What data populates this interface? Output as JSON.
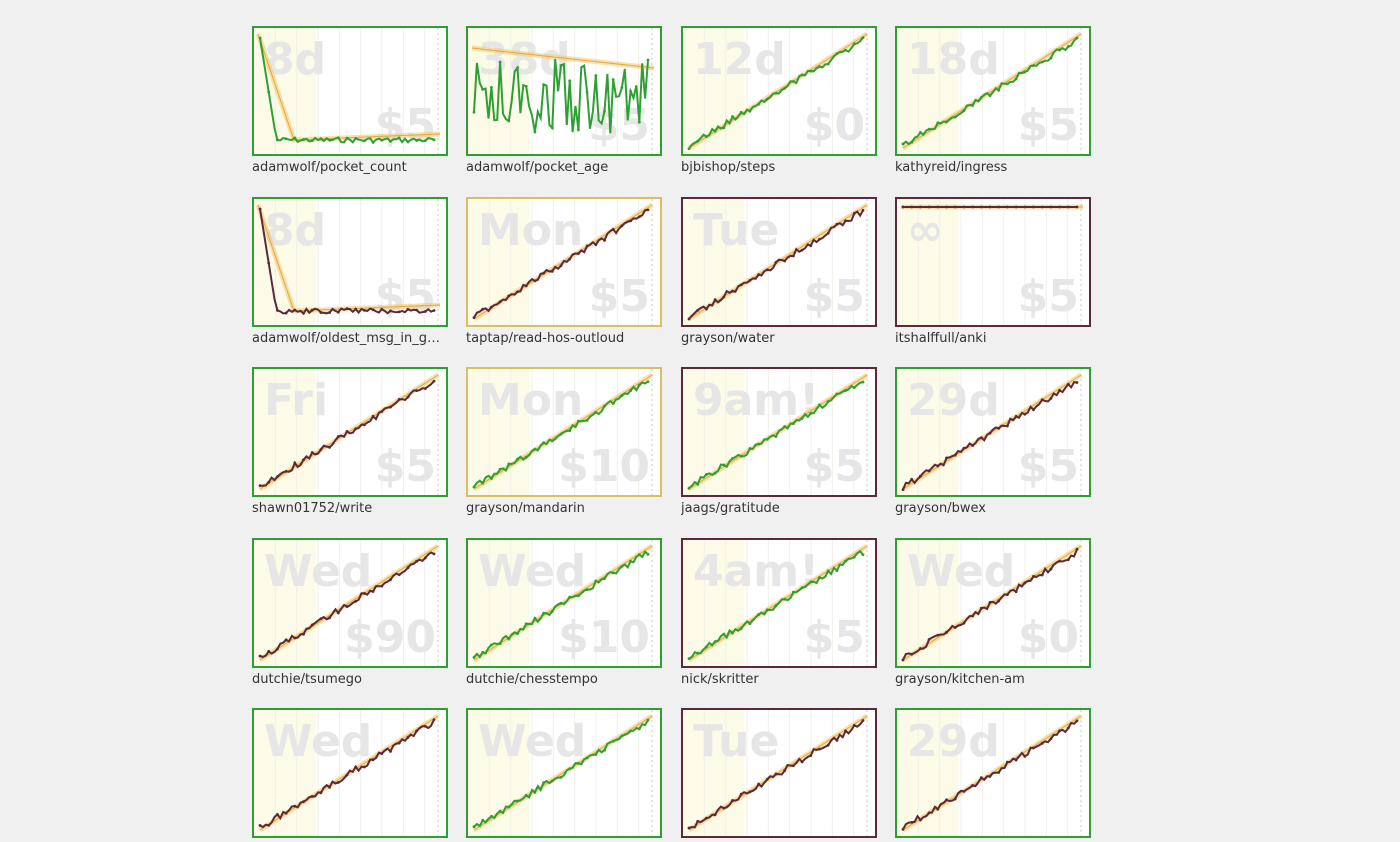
{
  "colors": {
    "page_bg": "#f0f0f0",
    "green": "#2ea033",
    "yellow": "#d8c060",
    "maroon": "#5a2a3a",
    "road": "#f2c96b",
    "watermark": "#e6e6e6",
    "label": "#333333"
  },
  "goals": [
    {
      "name": "adamwolf/pocket_count",
      "deadline_text": "8d",
      "pledge_text": "$5",
      "status": "green",
      "trend": "down",
      "points": "green"
    },
    {
      "name": "adamwolf/pocket_age",
      "deadline_text": "38d",
      "pledge_text": "$5",
      "status": "green",
      "trend": "noisy",
      "points": "green"
    },
    {
      "name": "bjbishop/steps",
      "deadline_text": "12d",
      "pledge_text": "$0",
      "status": "green",
      "trend": "up",
      "points": "green"
    },
    {
      "name": "kathyreid/ingress",
      "deadline_text": "18d",
      "pledge_text": "$5",
      "status": "green",
      "trend": "up",
      "points": "green"
    },
    {
      "name": "adamwolf/oldest_msg_in_gmail_inbox",
      "deadline_text": "8d",
      "pledge_text": "$5",
      "status": "green",
      "trend": "down",
      "points": "maroon"
    },
    {
      "name": "taptap/read-hos-outloud",
      "deadline_text": "Mon",
      "pledge_text": "$5",
      "status": "yellow",
      "trend": "up",
      "points": "maroon"
    },
    {
      "name": "grayson/water",
      "deadline_text": "Tue",
      "pledge_text": "$5",
      "status": "maroon",
      "trend": "up",
      "points": "maroon"
    },
    {
      "name": "itshalffull/anki",
      "deadline_text": "∞",
      "pledge_text": "$5",
      "status": "maroon",
      "trend": "flat",
      "points": "maroon"
    },
    {
      "name": "shawn01752/write",
      "deadline_text": "Fri",
      "pledge_text": "$5",
      "status": "green",
      "trend": "up",
      "points": "maroon"
    },
    {
      "name": "grayson/mandarin",
      "deadline_text": "Mon",
      "pledge_text": "$10",
      "status": "yellow",
      "trend": "up",
      "points": "green"
    },
    {
      "name": "jaags/gratitude",
      "deadline_text": "9am!",
      "pledge_text": "$5",
      "status": "maroon",
      "trend": "up",
      "points": "green"
    },
    {
      "name": "grayson/bwex",
      "deadline_text": "29d",
      "pledge_text": "$5",
      "status": "green",
      "trend": "up",
      "points": "maroon"
    },
    {
      "name": "dutchie/tsumego",
      "deadline_text": "Wed",
      "pledge_text": "$90",
      "status": "green",
      "trend": "up",
      "points": "maroon"
    },
    {
      "name": "dutchie/chesstempo",
      "deadline_text": "Wed",
      "pledge_text": "$10",
      "status": "green",
      "trend": "up",
      "points": "green"
    },
    {
      "name": "nick/skritter",
      "deadline_text": "4am!",
      "pledge_text": "$5",
      "status": "maroon",
      "trend": "up",
      "points": "green"
    },
    {
      "name": "grayson/kitchen-am",
      "deadline_text": "Wed",
      "pledge_text": "$0",
      "status": "green",
      "trend": "up",
      "points": "maroon"
    },
    {
      "name": "",
      "deadline_text": "Wed",
      "pledge_text": "",
      "status": "green",
      "trend": "up",
      "points": "maroon"
    },
    {
      "name": "",
      "deadline_text": "Wed",
      "pledge_text": "",
      "status": "green",
      "trend": "up",
      "points": "green"
    },
    {
      "name": "",
      "deadline_text": "Tue",
      "pledge_text": "",
      "status": "maroon",
      "trend": "up",
      "points": "maroon"
    },
    {
      "name": "",
      "deadline_text": "29d",
      "pledge_text": "",
      "status": "green",
      "trend": "up",
      "points": "maroon"
    }
  ]
}
